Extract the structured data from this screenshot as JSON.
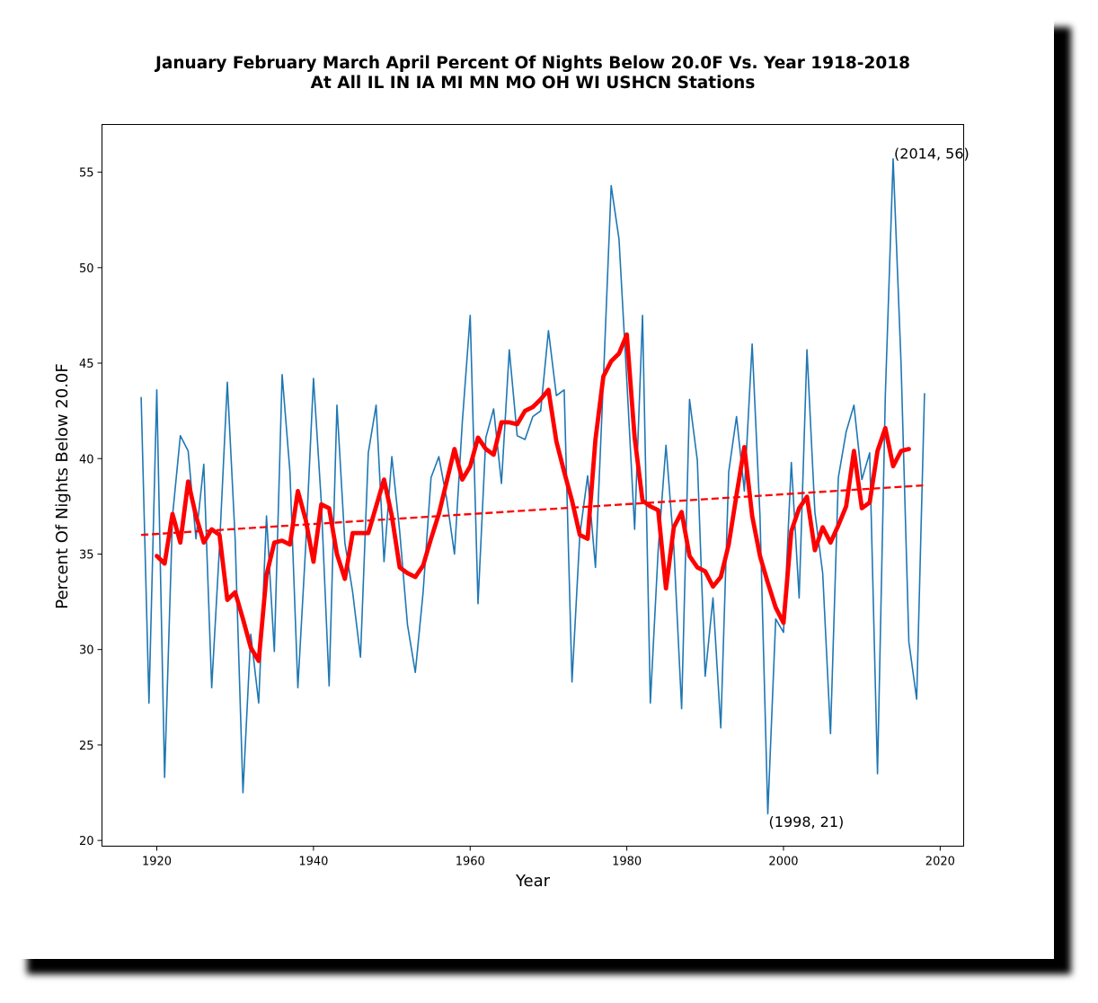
{
  "chart_data": {
    "type": "line",
    "title": "January February March April Percent Of Nights Below 20.0F Vs. Year 1918-2018",
    "subtitle": "At All IL IN IA MI MN MO OH WI USHCN Stations",
    "xlabel": "Year",
    "ylabel": "Percent Of Nights Below 20.0F",
    "xlim": [
      1913,
      2023
    ],
    "ylim": [
      19.7,
      57.5
    ],
    "xticks": [
      1920,
      1940,
      1960,
      1980,
      2000,
      2020
    ],
    "yticks": [
      20,
      25,
      30,
      35,
      40,
      45,
      50,
      55
    ],
    "grid": false,
    "series": [
      {
        "kind": "annual",
        "color": "#1f77b4",
        "x": [
          1918,
          1919,
          1920,
          1921,
          1922,
          1923,
          1924,
          1925,
          1926,
          1927,
          1928,
          1929,
          1930,
          1931,
          1932,
          1933,
          1934,
          1935,
          1936,
          1937,
          1938,
          1939,
          1940,
          1941,
          1942,
          1943,
          1944,
          1945,
          1946,
          1947,
          1948,
          1949,
          1950,
          1951,
          1952,
          1953,
          1954,
          1955,
          1956,
          1957,
          1958,
          1959,
          1960,
          1961,
          1962,
          1963,
          1964,
          1965,
          1966,
          1967,
          1968,
          1969,
          1970,
          1971,
          1972,
          1973,
          1974,
          1975,
          1976,
          1977,
          1978,
          1979,
          1980,
          1981,
          1982,
          1983,
          1984,
          1985,
          1986,
          1987,
          1988,
          1989,
          1990,
          1991,
          1992,
          1993,
          1994,
          1995,
          1996,
          1997,
          1998,
          1999,
          2000,
          2001,
          2002,
          2003,
          2004,
          2005,
          2006,
          2007,
          2008,
          2009,
          2010,
          2011,
          2012,
          2013,
          2014,
          2015,
          2016,
          2017,
          2018
        ],
        "y": [
          43.2,
          27.2,
          43.6,
          23.3,
          37.0,
          41.2,
          40.4,
          35.8,
          39.7,
          28.0,
          35.4,
          44.0,
          35.8,
          22.5,
          30.8,
          27.2,
          37.0,
          29.9,
          44.4,
          39.3,
          28.0,
          35.4,
          44.2,
          37.7,
          28.1,
          42.8,
          35.6,
          33.0,
          29.6,
          40.3,
          42.8,
          34.6,
          40.1,
          36.2,
          31.3,
          28.8,
          33.0,
          39.0,
          40.1,
          37.9,
          35.0,
          41.9,
          47.5,
          32.4,
          41.1,
          42.6,
          38.7,
          45.7,
          41.2,
          41.0,
          42.2,
          42.5,
          46.7,
          43.3,
          43.6,
          28.3,
          36.0,
          39.1,
          34.3,
          44.1,
          54.3,
          51.5,
          44.1,
          36.3,
          47.5,
          27.2,
          35.2,
          40.7,
          35.4,
          26.9,
          43.1,
          39.9,
          28.6,
          32.7,
          25.9,
          39.3,
          42.2,
          38.3,
          46.0,
          37.0,
          21.4,
          31.6,
          30.9,
          39.8,
          32.7,
          45.7,
          37.2,
          34.0,
          25.6,
          39.0,
          41.4,
          42.8,
          38.9,
          40.3,
          23.5,
          43.3,
          55.7,
          45.0,
          30.4,
          27.4,
          43.4
        ],
        "line_width": 1.6
      },
      {
        "kind": "moving-average",
        "color": "#ff0000",
        "x": [
          1920,
          1921,
          1922,
          1923,
          1924,
          1925,
          1926,
          1927,
          1928,
          1929,
          1930,
          1931,
          1932,
          1933,
          1934,
          1935,
          1936,
          1937,
          1938,
          1939,
          1940,
          1941,
          1942,
          1943,
          1944,
          1945,
          1946,
          1947,
          1948,
          1949,
          1950,
          1951,
          1952,
          1953,
          1954,
          1955,
          1956,
          1957,
          1958,
          1959,
          1960,
          1961,
          1962,
          1963,
          1964,
          1965,
          1966,
          1967,
          1968,
          1969,
          1970,
          1971,
          1972,
          1973,
          1974,
          1975,
          1976,
          1977,
          1978,
          1979,
          1980,
          1981,
          1982,
          1983,
          1984,
          1985,
          1986,
          1987,
          1988,
          1989,
          1990,
          1991,
          1992,
          1993,
          1994,
          1995,
          1996,
          1997,
          1998,
          1999,
          2000,
          2001,
          2002,
          2003,
          2004,
          2005,
          2006,
          2007,
          2008,
          2009,
          2010,
          2011,
          2012,
          2013,
          2014,
          2015,
          2016
        ],
        "y": [
          34.9,
          34.5,
          37.1,
          35.6,
          38.8,
          37.0,
          35.6,
          36.3,
          36.0,
          32.6,
          33.0,
          31.6,
          30.1,
          29.4,
          33.9,
          35.6,
          35.7,
          35.5,
          38.3,
          36.8,
          34.6,
          37.6,
          37.4,
          35.0,
          33.7,
          36.1,
          36.1,
          36.1,
          37.5,
          38.9,
          37.0,
          34.3,
          34.0,
          33.8,
          34.4,
          35.8,
          37.1,
          38.8,
          40.5,
          38.9,
          39.6,
          41.1,
          40.5,
          40.2,
          41.9,
          41.9,
          41.8,
          42.5,
          42.7,
          43.1,
          43.6,
          40.9,
          39.3,
          37.8,
          36.0,
          35.8,
          41.0,
          44.3,
          45.1,
          45.5,
          46.5,
          41.1,
          37.8,
          37.5,
          37.3,
          33.2,
          36.4,
          37.2,
          34.9,
          34.3,
          34.1,
          33.3,
          33.8,
          35.5,
          38.1,
          40.6,
          37.0,
          34.9,
          33.5,
          32.2,
          31.4,
          36.2,
          37.4,
          38.0,
          35.2,
          36.4,
          35.6,
          36.5,
          37.5,
          40.4,
          37.4,
          37.7,
          40.4,
          41.6,
          39.6,
          40.4,
          40.5
        ],
        "line_width": 4.8
      },
      {
        "kind": "trend",
        "color": "#ff0000",
        "style": "dashed",
        "x": [
          1918,
          2018
        ],
        "y": [
          36.0,
          38.6
        ],
        "line_width": 2.3
      }
    ],
    "annotations": [
      {
        "x": 2014,
        "y": 56,
        "text": "(2014, 56)"
      },
      {
        "x": 1998,
        "y": 21,
        "text": "(1998, 21)"
      }
    ]
  }
}
